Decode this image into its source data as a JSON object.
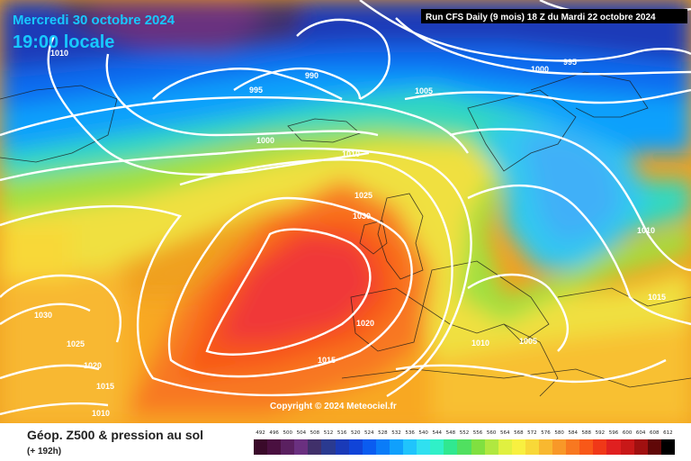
{
  "header": {
    "date": "Mercredi 30 octobre 2024",
    "local_time": "19:00 locale",
    "run_info": "Run CFS Daily (9 mois) 18 Z du Mardi 22 octobre 2024"
  },
  "isobar_labels": [
    {
      "id": "1010-nw",
      "text": "1010"
    },
    {
      "id": "995-w",
      "text": "995"
    },
    {
      "id": "990",
      "text": "990"
    },
    {
      "id": "1000-w",
      "text": "1000"
    },
    {
      "id": "1010-c",
      "text": "1010"
    },
    {
      "id": "1025-c",
      "text": "1025"
    },
    {
      "id": "1030-c",
      "text": "1030"
    },
    {
      "id": "1005-n",
      "text": "1005"
    },
    {
      "id": "1000-ne",
      "text": "1000"
    },
    {
      "id": "995-ne",
      "text": "995"
    },
    {
      "id": "1010-e",
      "text": "1010"
    },
    {
      "id": "1015-e",
      "text": "1015"
    },
    {
      "id": "1020-s",
      "text": "1020"
    },
    {
      "id": "1010-s",
      "text": "1010"
    },
    {
      "id": "1005-s",
      "text": "1005"
    },
    {
      "id": "1015-s",
      "text": "1015"
    },
    {
      "id": "1030-w",
      "text": "1030"
    },
    {
      "id": "1025-w",
      "text": "1025"
    },
    {
      "id": "1020-w",
      "text": "1020"
    },
    {
      "id": "1015-w",
      "text": "1015"
    },
    {
      "id": "1010-sw",
      "text": "1010"
    }
  ],
  "copyright": "Copyright © 2024 Meteociel.fr",
  "footer": {
    "title": "Géop. Z500 & pression au sol",
    "subtitle": "(+ 192h)"
  },
  "legend": {
    "labels": [
      "492",
      "496",
      "500",
      "504",
      "508",
      "512",
      "516",
      "520",
      "524",
      "528",
      "532",
      "536",
      "540",
      "544",
      "548",
      "552",
      "556",
      "560",
      "564",
      "568",
      "572",
      "576",
      "580",
      "584",
      "588",
      "592",
      "596",
      "600",
      "604",
      "608",
      "612"
    ],
    "colors": [
      "#3a0a2a",
      "#4a1040",
      "#5a2060",
      "#6a3080",
      "#40306a",
      "#2a3a90",
      "#1a3ab8",
      "#1044d8",
      "#0a5cf0",
      "#0a7cf8",
      "#10a0fc",
      "#20c4fc",
      "#30e0f0",
      "#30f0c8",
      "#30e890",
      "#50e060",
      "#80e040",
      "#b0e840",
      "#e0f040",
      "#f8f040",
      "#f8d838",
      "#f8b830",
      "#f89828",
      "#f87820",
      "#f85818",
      "#f03818",
      "#e02020",
      "#c81818",
      "#a01010",
      "#600808",
      "#000000"
    ]
  }
}
